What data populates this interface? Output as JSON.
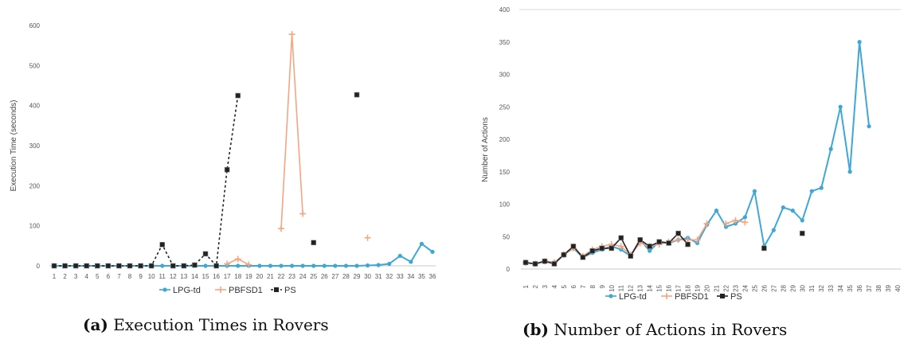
{
  "chart_data": [
    {
      "type": "line",
      "ylabel": "Execution Time (seconds)",
      "ylim": [
        0,
        600
      ],
      "yticks": [
        0,
        100,
        200,
        300,
        400,
        500,
        600
      ],
      "categories": [
        "1",
        "2",
        "3",
        "4",
        "5",
        "6",
        "7",
        "8",
        "9",
        "10",
        "11",
        "12",
        "13",
        "14",
        "15",
        "16",
        "17",
        "18",
        "19",
        "20",
        "21",
        "22",
        "23",
        "24",
        "25",
        "26",
        "27",
        "28",
        "29",
        "30",
        "31",
        "32",
        "33",
        "34",
        "35",
        "36"
      ],
      "series": [
        {
          "name": "LPG-td",
          "color": "#3fa7d6",
          "marker": "dot",
          "values": [
            0,
            0,
            0,
            0,
            0,
            0,
            0,
            0,
            0,
            0,
            0,
            0,
            0,
            0,
            0,
            0,
            0,
            0,
            0,
            0,
            0,
            0,
            0,
            0,
            0,
            0,
            0,
            0,
            0,
            1,
            2,
            5,
            25,
            10,
            55,
            35
          ]
        },
        {
          "name": "PBFSD1",
          "color": "#f4a582",
          "marker": "plus",
          "values": [
            null,
            null,
            null,
            null,
            null,
            null,
            null,
            null,
            null,
            null,
            null,
            null,
            null,
            null,
            null,
            null,
            5,
            17,
            3,
            null,
            null,
            93,
            578,
            130,
            null,
            null,
            null,
            null,
            null,
            70,
            null,
            null,
            null,
            null,
            null,
            null
          ]
        },
        {
          "name": "PS",
          "color": "#222222",
          "marker": "square",
          "values": [
            0,
            0,
            0,
            0,
            0,
            0,
            0,
            0,
            0,
            0,
            53,
            0,
            0,
            2,
            30,
            0,
            240,
            425,
            null,
            null,
            null,
            null,
            null,
            null,
            58,
            null,
            null,
            null,
            427,
            null,
            null,
            null,
            null,
            null,
            null,
            null
          ]
        }
      ],
      "legend": [
        "LPG-td",
        "PBFSD1",
        "PS"
      ],
      "caption_prefix": "(a)",
      "caption": "Execution Times in Rovers"
    },
    {
      "type": "line",
      "ylabel": "Number of Actions",
      "ylim": [
        0,
        400
      ],
      "yticks": [
        0,
        50,
        100,
        150,
        200,
        250,
        300,
        350,
        400
      ],
      "categories": [
        "1",
        "2",
        "3",
        "4",
        "5",
        "6",
        "7",
        "8",
        "9",
        "10",
        "11",
        "12",
        "13",
        "14",
        "15",
        "16",
        "17",
        "18",
        "19",
        "20",
        "21",
        "22",
        "23",
        "24",
        "25",
        "26",
        "27",
        "28",
        "29",
        "30",
        "31",
        "32",
        "33",
        "34",
        "35",
        "36",
        "37",
        "38",
        "39",
        "40"
      ],
      "series": [
        {
          "name": "LPG-td",
          "color": "#3fa7d6",
          "marker": "dot",
          "values": [
            10,
            8,
            12,
            10,
            22,
            32,
            18,
            25,
            30,
            35,
            30,
            20,
            45,
            28,
            42,
            40,
            45,
            48,
            40,
            68,
            90,
            65,
            70,
            80,
            120,
            35,
            60,
            95,
            90,
            75,
            120,
            125,
            185,
            250,
            150,
            350,
            220,
            null,
            null,
            null
          ]
        },
        {
          "name": "PBFSD1",
          "color": "#f4a582",
          "marker": "plus",
          "values": [
            10,
            8,
            12,
            10,
            22,
            32,
            20,
            30,
            35,
            38,
            35,
            22,
            40,
            35,
            38,
            42,
            45,
            45,
            45,
            70,
            null,
            70,
            75,
            72,
            null,
            null,
            null,
            null,
            null,
            null,
            null,
            null,
            null,
            null,
            null,
            null,
            null,
            null,
            null,
            null
          ]
        },
        {
          "name": "PS",
          "color": "#222222",
          "marker": "square",
          "values": [
            10,
            8,
            12,
            8,
            22,
            35,
            18,
            28,
            32,
            32,
            48,
            20,
            45,
            35,
            42,
            40,
            55,
            38,
            null,
            null,
            null,
            null,
            null,
            null,
            null,
            32,
            null,
            null,
            null,
            55,
            null,
            null,
            null,
            null,
            null,
            null,
            null,
            null,
            null,
            null
          ]
        }
      ],
      "legend": [
        "LPG-td",
        "PBFSD1",
        "PS"
      ],
      "caption_prefix": "(b)",
      "caption": "Number of Actions in Rovers"
    }
  ]
}
